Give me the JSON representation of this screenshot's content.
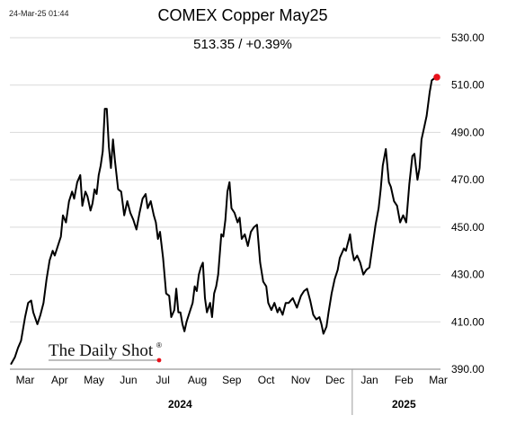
{
  "header": {
    "timestamp": "24-Mar-25 01:44",
    "title": "COMEX Copper May25",
    "subtitle": "513.35  /  +0.39%"
  },
  "watermark": {
    "text": "The Daily Shot",
    "mark": "®"
  },
  "colors": {
    "line": "#000000",
    "last_point": "#e8101a",
    "grid": "#d9d9d9"
  },
  "chart_data": {
    "type": "line",
    "title": "COMEX Copper May25",
    "ylim": [
      390,
      530
    ],
    "yticks": [
      390,
      410,
      430,
      450,
      470,
      490,
      510,
      530
    ],
    "ytick_labels": [
      "390.00",
      "410.00",
      "430.00",
      "450.00",
      "470.00",
      "490.00",
      "510.00",
      "530.00"
    ],
    "y_axis_side": "right",
    "grid": "horizontal",
    "x_months": [
      "Mar",
      "Apr",
      "May",
      "Jun",
      "Jul",
      "Aug",
      "Sep",
      "Oct",
      "Nov",
      "Dec",
      "Jan",
      "Feb",
      "Mar"
    ],
    "x_years": [
      {
        "label": "2024",
        "month_range": [
          0,
          9
        ]
      },
      {
        "label": "2025",
        "month_range": [
          10,
          12
        ]
      }
    ],
    "last_value_marker": "red dot",
    "series": [
      {
        "values": [
          [
            0.0,
            392
          ],
          [
            0.2,
            395
          ],
          [
            0.35,
            399
          ],
          [
            0.5,
            402
          ],
          [
            0.7,
            412
          ],
          [
            0.85,
            418
          ],
          [
            1.0,
            419
          ],
          [
            1.1,
            414
          ],
          [
            1.3,
            409
          ],
          [
            1.45,
            413
          ],
          [
            1.6,
            418
          ],
          [
            1.75,
            428
          ],
          [
            1.9,
            436
          ],
          [
            2.05,
            440
          ],
          [
            2.15,
            438
          ],
          [
            2.3,
            442
          ],
          [
            2.45,
            446
          ],
          [
            2.55,
            455
          ],
          [
            2.7,
            452
          ],
          [
            2.85,
            461
          ],
          [
            3.0,
            465
          ],
          [
            3.1,
            462
          ],
          [
            3.25,
            469
          ],
          [
            3.4,
            472
          ],
          [
            3.5,
            459
          ],
          [
            3.65,
            465
          ],
          [
            3.75,
            463
          ],
          [
            3.9,
            457
          ],
          [
            4.0,
            460
          ],
          [
            4.1,
            466
          ],
          [
            4.2,
            464
          ],
          [
            4.3,
            472
          ],
          [
            4.4,
            476
          ],
          [
            4.5,
            482
          ],
          [
            4.6,
            500
          ],
          [
            4.7,
            500
          ],
          [
            4.8,
            484
          ],
          [
            4.9,
            475
          ],
          [
            5.0,
            487
          ],
          [
            5.1,
            478
          ],
          [
            5.25,
            466
          ],
          [
            5.4,
            465
          ],
          [
            5.55,
            455
          ],
          [
            5.7,
            461
          ],
          [
            5.85,
            456
          ],
          [
            6.0,
            453
          ],
          [
            6.15,
            449
          ],
          [
            6.3,
            456
          ],
          [
            6.45,
            462
          ],
          [
            6.6,
            464
          ],
          [
            6.7,
            458
          ],
          [
            6.85,
            461
          ],
          [
            7.0,
            455
          ],
          [
            7.1,
            452
          ],
          [
            7.2,
            445
          ],
          [
            7.3,
            448
          ],
          [
            7.45,
            437
          ],
          [
            7.6,
            422
          ],
          [
            7.75,
            421
          ],
          [
            7.85,
            412
          ],
          [
            8.0,
            415
          ],
          [
            8.1,
            424
          ],
          [
            8.2,
            414
          ],
          [
            8.3,
            414
          ],
          [
            8.4,
            409
          ],
          [
            8.5,
            406
          ],
          [
            8.6,
            410
          ],
          [
            8.75,
            414
          ],
          [
            8.9,
            418
          ],
          [
            9.0,
            425
          ],
          [
            9.1,
            423
          ],
          [
            9.2,
            430
          ],
          [
            9.3,
            433
          ],
          [
            9.4,
            435
          ],
          [
            9.5,
            420
          ],
          [
            9.6,
            414
          ],
          [
            9.75,
            418
          ],
          [
            9.85,
            412
          ],
          [
            9.95,
            422
          ],
          [
            10.05,
            425
          ],
          [
            10.15,
            430
          ],
          [
            10.3,
            447
          ],
          [
            10.4,
            446
          ],
          [
            10.5,
            453
          ],
          [
            10.6,
            465
          ],
          [
            10.7,
            469
          ],
          [
            10.8,
            458
          ],
          [
            10.95,
            456
          ],
          [
            11.1,
            452
          ],
          [
            11.2,
            454
          ],
          [
            11.3,
            445
          ],
          [
            11.45,
            447
          ],
          [
            11.6,
            442
          ],
          [
            11.75,
            448
          ],
          [
            11.9,
            450
          ],
          [
            12.05,
            451
          ],
          [
            12.2,
            435
          ],
          [
            12.35,
            427
          ],
          [
            12.5,
            425
          ],
          [
            12.6,
            418
          ],
          [
            12.75,
            415
          ],
          [
            12.9,
            418
          ],
          [
            13.05,
            414
          ],
          [
            13.15,
            416
          ],
          [
            13.3,
            413
          ],
          [
            13.45,
            418
          ],
          [
            13.6,
            418
          ],
          [
            13.8,
            420
          ],
          [
            14.0,
            416
          ],
          [
            14.2,
            421
          ],
          [
            14.35,
            423
          ],
          [
            14.5,
            424
          ],
          [
            14.65,
            419
          ],
          [
            14.8,
            413
          ],
          [
            14.95,
            411
          ],
          [
            15.1,
            412
          ],
          [
            15.2,
            409
          ],
          [
            15.3,
            405
          ],
          [
            15.45,
            408
          ],
          [
            15.55,
            414
          ],
          [
            15.7,
            422
          ],
          [
            15.85,
            428
          ],
          [
            16.0,
            432
          ],
          [
            16.1,
            437
          ],
          [
            16.3,
            441
          ],
          [
            16.4,
            440
          ],
          [
            16.55,
            445
          ],
          [
            16.6,
            447
          ],
          [
            16.7,
            440
          ],
          [
            16.8,
            436
          ],
          [
            16.95,
            438
          ],
          [
            17.1,
            435
          ],
          [
            17.25,
            430
          ],
          [
            17.4,
            432
          ],
          [
            17.55,
            433
          ],
          [
            17.7,
            442
          ],
          [
            17.85,
            451
          ],
          [
            18.0,
            458
          ],
          [
            18.1,
            466
          ],
          [
            18.2,
            476
          ],
          [
            18.35,
            483
          ],
          [
            18.5,
            469
          ],
          [
            18.6,
            467
          ],
          [
            18.75,
            461
          ],
          [
            18.9,
            459
          ],
          [
            19.05,
            452
          ],
          [
            19.2,
            455
          ],
          [
            19.35,
            452
          ],
          [
            19.5,
            468
          ],
          [
            19.65,
            480
          ],
          [
            19.75,
            481
          ],
          [
            19.9,
            470
          ],
          [
            20.0,
            475
          ],
          [
            20.1,
            487
          ],
          [
            20.2,
            491
          ],
          [
            20.35,
            497
          ],
          [
            20.5,
            507
          ],
          [
            20.6,
            512
          ],
          [
            20.75,
            513
          ],
          [
            20.85,
            513.35
          ]
        ]
      }
    ]
  }
}
